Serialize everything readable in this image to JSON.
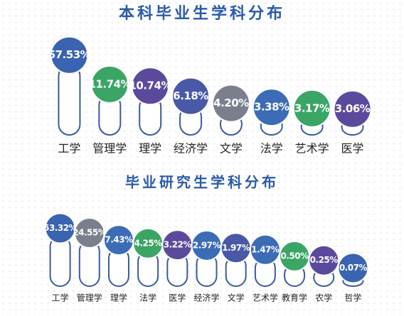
{
  "chart_data": [
    {
      "type": "pill",
      "title": "本科毕业生学科分布",
      "categories": [
        "工学",
        "管理学",
        "理学",
        "经济学",
        "文学",
        "法学",
        "艺术学",
        "医学"
      ],
      "values": [
        57.53,
        11.74,
        10.74,
        6.18,
        4.2,
        3.38,
        3.17,
        3.06
      ],
      "value_labels": [
        "57.53%",
        "11.74%",
        "10.74%",
        "6.18%",
        "4.20%",
        "3.38%",
        "3.17%",
        "3.06%"
      ],
      "colors": [
        "#3a63b0",
        "#3aa565",
        "#5b4a9c",
        "#4a58a8",
        "#7b7f8c",
        "#3b6cb5",
        "#3aa565",
        "#5b4a9c"
      ]
    },
    {
      "type": "pill",
      "title": "毕业研究生学科分布",
      "categories": [
        "工学",
        "管理学",
        "理学",
        "法学",
        "医学",
        "经济学",
        "文学",
        "艺术学",
        "教育学",
        "农学",
        "哲学"
      ],
      "values": [
        53.32,
        24.55,
        7.43,
        4.25,
        3.22,
        2.97,
        1.97,
        1.47,
        0.5,
        0.25,
        0.07
      ],
      "value_labels": [
        "53.32%",
        "24.55%",
        "7.43%",
        "4.25%",
        "3.22%",
        "2.97%",
        "1.97%",
        "1.47%",
        "0.50%",
        "0.25%",
        "0.07%"
      ],
      "colors": [
        "#3a63b0",
        "#7b7f8c",
        "#3b6cb5",
        "#3aa565",
        "#5b4a9c",
        "#3b6cb5",
        "#4a58a8",
        "#3b6cb5",
        "#3aa565",
        "#5b4a9c",
        "#3a63b0"
      ]
    }
  ]
}
